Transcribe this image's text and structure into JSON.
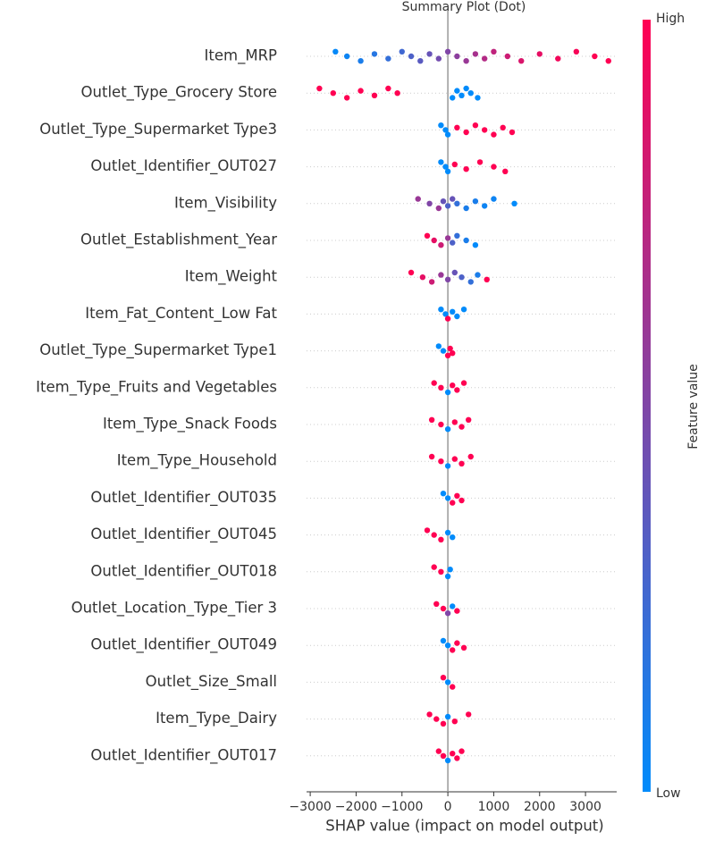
{
  "chart_data": {
    "type": "beeswarm",
    "title": "Summary Plot (Dot)",
    "x_label": "SHAP value (impact on model output)",
    "xlim": [
      -3080,
      3680
    ],
    "xticks": [
      {
        "value": -3000,
        "label": "−3000"
      },
      {
        "value": -2000,
        "label": "−2000"
      },
      {
        "value": -1000,
        "label": "−1000"
      },
      0,
      1000,
      2000,
      3000
    ],
    "color_low": "#008bfb",
    "color_high": "#ff0052",
    "colorbar": {
      "label": "Feature value",
      "high": "High",
      "low": "Low"
    },
    "series": [
      {
        "name": "Item_MRP",
        "shap": [
          -2450,
          -2200,
          -1900,
          -1600,
          -1300,
          -1000,
          -800,
          -600,
          -400,
          -200,
          0,
          200,
          400,
          600,
          800,
          1000,
          1300,
          1600,
          2000,
          2400,
          2800,
          3200,
          3500
        ],
        "feature_value": [
          0.02,
          0.05,
          0.1,
          0.15,
          0.2,
          0.25,
          0.3,
          0.35,
          0.4,
          0.45,
          0.5,
          0.55,
          0.6,
          0.65,
          0.7,
          0.75,
          0.8,
          0.85,
          0.9,
          0.95,
          0.97,
          1,
          1
        ]
      },
      {
        "name": "Outlet_Type_Grocery Store",
        "shap": [
          -2800,
          -2500,
          -2200,
          -1900,
          -1600,
          -1300,
          -1100,
          100,
          200,
          300,
          400,
          500,
          650
        ],
        "feature_value": [
          1,
          1,
          1,
          1,
          1,
          1,
          1,
          0,
          0,
          0,
          0,
          0,
          0
        ]
      },
      {
        "name": "Outlet_Type_Supermarket Type3",
        "shap": [
          -150,
          -50,
          0,
          200,
          400,
          600,
          800,
          1000,
          1200,
          1400
        ],
        "feature_value": [
          0,
          0,
          0,
          1,
          1,
          1,
          1,
          1,
          1,
          1
        ]
      },
      {
        "name": "Outlet_Identifier_OUT027",
        "shap": [
          -150,
          -50,
          0,
          150,
          400,
          700,
          1000,
          1250
        ],
        "feature_value": [
          0,
          0,
          0,
          1,
          1,
          1,
          1,
          1
        ]
      },
      {
        "name": "Item_Visibility",
        "shap": [
          -650,
          -400,
          -200,
          -100,
          0,
          100,
          200,
          400,
          600,
          800,
          1000,
          1450
        ],
        "feature_value": [
          0.6,
          0.5,
          0.6,
          0.4,
          0.3,
          0.4,
          0.2,
          0.1,
          0.1,
          0.05,
          0.05,
          0
        ]
      },
      {
        "name": "Outlet_Establishment_Year",
        "shap": [
          -450,
          -300,
          -150,
          0,
          100,
          200,
          400,
          600
        ],
        "feature_value": [
          1,
          0.9,
          0.8,
          0.6,
          0.3,
          0.2,
          0.1,
          0
        ]
      },
      {
        "name": "Item_Weight",
        "shap": [
          -800,
          -550,
          -350,
          -150,
          0,
          150,
          300,
          500,
          650,
          850
        ],
        "feature_value": [
          1,
          0.9,
          0.8,
          0.6,
          0.5,
          0.4,
          0.3,
          0.2,
          0.1,
          1
        ]
      },
      {
        "name": "Item_Fat_Content_Low Fat",
        "shap": [
          -150,
          -50,
          0,
          100,
          200,
          350
        ],
        "feature_value": [
          0,
          0,
          1,
          0,
          0,
          0
        ]
      },
      {
        "name": "Outlet_Type_Supermarket Type1",
        "shap": [
          -200,
          -100,
          0,
          50,
          100
        ],
        "feature_value": [
          0,
          0,
          1,
          1,
          1
        ]
      },
      {
        "name": "Item_Type_Fruits and Vegetables",
        "shap": [
          -300,
          -150,
          0,
          100,
          200,
          350
        ],
        "feature_value": [
          1,
          1,
          0,
          1,
          1,
          1
        ]
      },
      {
        "name": "Item_Type_Snack Foods",
        "shap": [
          -350,
          -150,
          0,
          150,
          300,
          450
        ],
        "feature_value": [
          1,
          1,
          0,
          1,
          1,
          1
        ]
      },
      {
        "name": "Item_Type_Household",
        "shap": [
          -350,
          -150,
          0,
          150,
          300,
          500
        ],
        "feature_value": [
          1,
          1,
          0,
          1,
          1,
          1
        ]
      },
      {
        "name": "Outlet_Identifier_OUT035",
        "shap": [
          -100,
          0,
          100,
          200,
          300
        ],
        "feature_value": [
          0,
          0,
          1,
          1,
          1
        ]
      },
      {
        "name": "Outlet_Identifier_OUT045",
        "shap": [
          -450,
          -300,
          -150,
          0,
          100
        ],
        "feature_value": [
          1,
          1,
          1,
          0,
          0
        ]
      },
      {
        "name": "Outlet_Identifier_OUT018",
        "shap": [
          -300,
          -150,
          0,
          50
        ],
        "feature_value": [
          1,
          1,
          0,
          0
        ]
      },
      {
        "name": "Outlet_Location_Type_Tier 3",
        "shap": [
          -250,
          -100,
          0,
          100,
          200
        ],
        "feature_value": [
          1,
          1,
          0.5,
          0,
          1
        ]
      },
      {
        "name": "Outlet_Identifier_OUT049",
        "shap": [
          -100,
          0,
          100,
          200,
          350
        ],
        "feature_value": [
          0,
          0,
          1,
          1,
          1
        ]
      },
      {
        "name": "Outlet_Size_Small",
        "shap": [
          -100,
          0,
          100
        ],
        "feature_value": [
          1,
          0,
          1
        ]
      },
      {
        "name": "Item_Type_Dairy",
        "shap": [
          -400,
          -250,
          -100,
          0,
          150,
          450
        ],
        "feature_value": [
          1,
          1,
          1,
          0,
          1,
          1
        ]
      },
      {
        "name": "Outlet_Identifier_OUT017",
        "shap": [
          -200,
          -100,
          0,
          100,
          200,
          300
        ],
        "feature_value": [
          1,
          1,
          0,
          1,
          1,
          1
        ]
      }
    ]
  }
}
